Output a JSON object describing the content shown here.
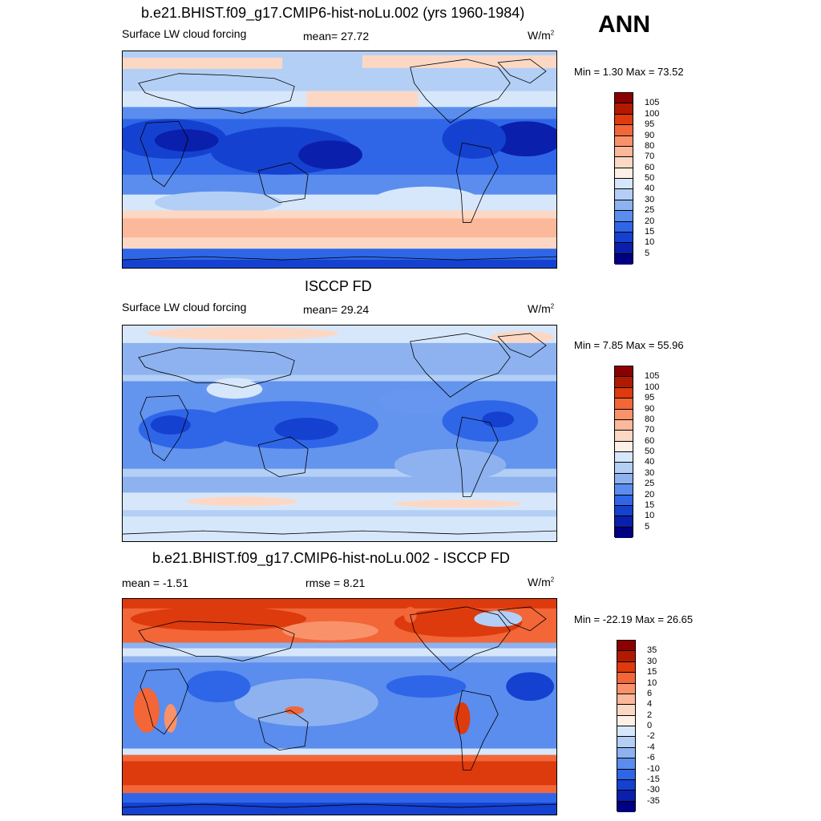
{
  "season_label": "ANN",
  "panels": [
    {
      "title": "b.e21.BHIST.f09_g17.CMIP6-hist-noLu.002 (yrs 1960-1984)",
      "left_label": "Surface LW cloud forcing",
      "center_label": "mean=  27.72",
      "units": "W/m",
      "units_sup": "2",
      "minmax": "Min =   1.30 Max =  73.52",
      "colorbar_ticks": [
        "105",
        "100",
        "95",
        "90",
        "80",
        "70",
        "60",
        "50",
        "40",
        "30",
        "25",
        "20",
        "15",
        "10",
        "5"
      ],
      "colors": [
        "#8b0000",
        "#b21a00",
        "#dd3a0e",
        "#f26638",
        "#f9926a",
        "#fbb89a",
        "#fcd8c4",
        "#fdf0e6",
        "#d7e7fb",
        "#b3cff5",
        "#8db2ef",
        "#5a8ded",
        "#2f66e8",
        "#1541d0",
        "#0a1fab",
        "#000080"
      ]
    },
    {
      "title": "ISCCP FD",
      "left_label": "Surface LW cloud forcing",
      "center_label": "mean=  29.24",
      "units": "W/m",
      "units_sup": "2",
      "minmax": "Min =   7.85 Max =  55.96",
      "colorbar_ticks": [
        "105",
        "100",
        "95",
        "90",
        "80",
        "70",
        "60",
        "50",
        "40",
        "30",
        "25",
        "20",
        "15",
        "10",
        "5"
      ],
      "colors": [
        "#8b0000",
        "#b21a00",
        "#dd3a0e",
        "#f26638",
        "#f9926a",
        "#fbb89a",
        "#fcd8c4",
        "#fdf0e6",
        "#d7e7fb",
        "#b3cff5",
        "#8db2ef",
        "#5a8ded",
        "#2f66e8",
        "#1541d0",
        "#0a1fab",
        "#000080"
      ]
    },
    {
      "title": "b.e21.BHIST.f09_g17.CMIP6-hist-noLu.002 - ISCCP FD",
      "left_label": "mean =  -1.51",
      "center_label": "rmse =   8.21",
      "units": "W/m",
      "units_sup": "2",
      "minmax": "Min = -22.19 Max =  26.65",
      "colorbar_ticks": [
        "35",
        "30",
        "15",
        "10",
        "6",
        "4",
        "2",
        "0",
        "-2",
        "-4",
        "-6",
        "-10",
        "-15",
        "-30",
        "-35"
      ],
      "colors": [
        "#8b0000",
        "#b21a00",
        "#dd3a0e",
        "#f26638",
        "#f9926a",
        "#fbb89a",
        "#fcd8c4",
        "#fdf0e6",
        "#d7e7fb",
        "#b3cff5",
        "#8db2ef",
        "#5a8ded",
        "#2f66e8",
        "#1541d0",
        "#0a1fab",
        "#000080"
      ]
    }
  ]
}
